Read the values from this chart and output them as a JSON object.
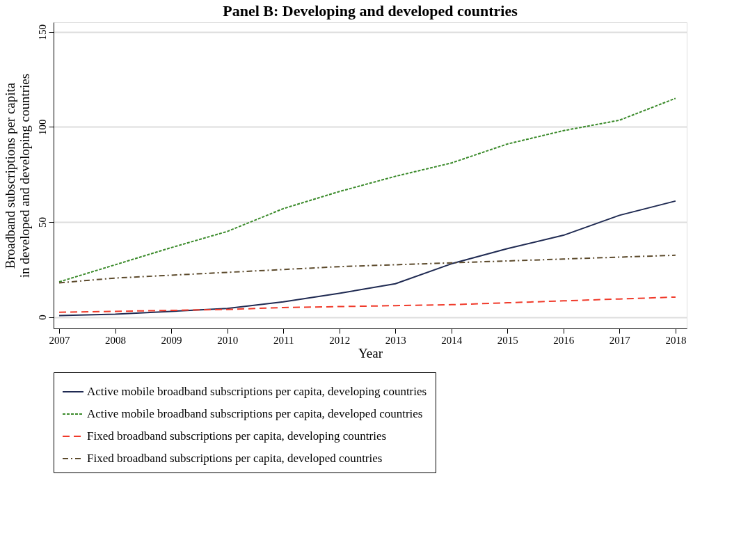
{
  "chart_data": {
    "type": "line",
    "title": "Panel B: Developing and developed countries",
    "xlabel": "Year",
    "ylabel": "Broadband subscriptions per capita\nin developed and developing countries",
    "x": [
      2007,
      2008,
      2009,
      2010,
      2011,
      2012,
      2013,
      2014,
      2015,
      2016,
      2017,
      2018
    ],
    "series": [
      {
        "name": "Active mobile broadband subscriptions per capita, developing countries",
        "color": "#1f2a52",
        "line_style": "solid",
        "values": [
          0.8,
          1.5,
          3,
          4.5,
          8,
          12.5,
          17.5,
          28,
          36,
          43,
          53.5,
          61
        ]
      },
      {
        "name": "Active mobile broadband subscriptions per capita, developed countries",
        "color": "#3a8a2a",
        "line_style": "dotted",
        "values": [
          18.5,
          27.5,
          36.5,
          45,
          57,
          66,
          74,
          81,
          91,
          98,
          103.5,
          115
        ]
      },
      {
        "name": "Fixed broadband subscriptions per capita, developing countries",
        "color": "#f03a2a",
        "line_style": "dashed",
        "values": [
          2.5,
          3,
          3.5,
          4,
          5,
          5.5,
          6,
          6.5,
          7.5,
          8.5,
          9.5,
          10.5
        ]
      },
      {
        "name": "Fixed broadband subscriptions per capita, developed countries",
        "color": "#5c4a2c",
        "line_style": "dashdot",
        "values": [
          18,
          20.5,
          22,
          23.5,
          25,
          26.5,
          27.5,
          28.5,
          29.5,
          30.5,
          31.5,
          32.5
        ]
      }
    ],
    "xlim": [
      2006.9,
      2018.2
    ],
    "xticks": [
      2007,
      2008,
      2009,
      2010,
      2011,
      2012,
      2013,
      2014,
      2015,
      2016,
      2017,
      2018
    ],
    "ylim": [
      -6,
      155
    ],
    "yticks": [
      0,
      50,
      100,
      150
    ],
    "grid": "y",
    "legend": "bottom",
    "marker": "none"
  }
}
